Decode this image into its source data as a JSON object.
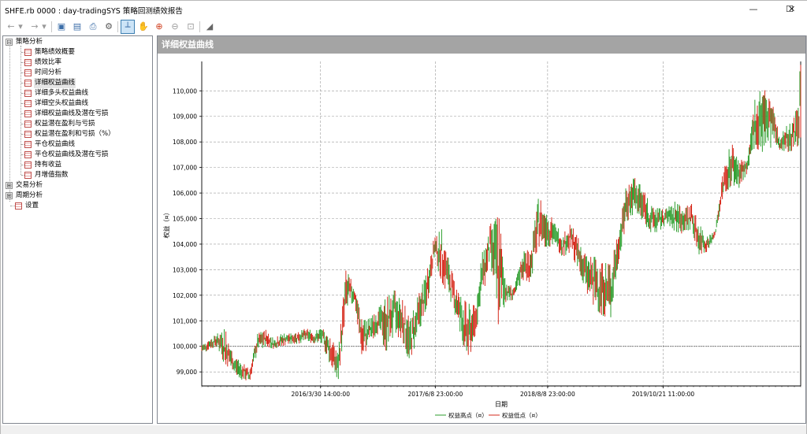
{
  "window": {
    "title": "SHFE.rb 0000 : day-tradingSYS 策略回测绩效报告",
    "minimize_glyph": "—",
    "maximize_glyph": "☐",
    "close_glyph": "✕"
  },
  "toolbar": {
    "buttons": [
      {
        "icon": "back-arrow-icon",
        "glyph": "←"
      },
      {
        "icon": "dropdown-icon",
        "glyph": "▾"
      },
      {
        "icon": "forward-arrow-icon",
        "glyph": "→"
      },
      {
        "icon": "dropdown-icon",
        "glyph": "▾"
      },
      {
        "icon": "save-icon",
        "glyph": "▣"
      },
      {
        "icon": "open-book-icon",
        "glyph": "▤"
      },
      {
        "icon": "print-icon",
        "glyph": "⎙"
      },
      {
        "icon": "gear-icon",
        "glyph": "⚙"
      },
      {
        "icon": "crosshair-icon",
        "glyph": "┴"
      },
      {
        "icon": "hand-pan-icon",
        "glyph": "✋"
      },
      {
        "icon": "zoom-in-icon",
        "glyph": "⊕"
      },
      {
        "icon": "zoom-out-icon",
        "glyph": "⊖"
      },
      {
        "icon": "zoom-reset-icon",
        "glyph": "⊡"
      },
      {
        "icon": "chart-style-icon",
        "glyph": "◢"
      }
    ]
  },
  "tree": {
    "groups": [
      {
        "label": "策略分析",
        "expanded": true,
        "expander": "⊟",
        "items": [
          "策略绩效概要",
          "绩效比率",
          "时间分析",
          "详细权益曲线",
          "详细多头权益曲线",
          "详细空头权益曲线",
          "详细权益曲线及潜在亏损",
          "权益潜在盈利与亏损",
          "权益潜在盈利和亏损（%）",
          "平仓权益曲线",
          "平仓权益曲线及潜在亏损",
          "持有收益",
          "月增值指数"
        ],
        "selected_index": 3
      },
      {
        "label": "交易分析",
        "expanded": false,
        "expander": "⊞",
        "items": []
      },
      {
        "label": "周期分析",
        "expanded": false,
        "expander": "⊞",
        "items": []
      }
    ],
    "leaf_root": "设置"
  },
  "panel": {
    "header": "详细权益曲线"
  },
  "chart_data": {
    "type": "line",
    "xlabel": "日期",
    "ylabel": "权益（¤）",
    "ylim": [
      98450,
      111150
    ],
    "yticks": [
      99000,
      100000,
      101000,
      102000,
      103000,
      104000,
      105000,
      106000,
      107000,
      108000,
      109000,
      110000
    ],
    "ytick_labels": [
      "99,000",
      "100,000",
      "101,000",
      "102,000",
      "103,000",
      "104,000",
      "105,000",
      "106,000",
      "107,000",
      "108,000",
      "109,000",
      "110,000"
    ],
    "xlim": [
      "2015-01-05",
      "2021-03-26"
    ],
    "xticks": [
      "2016-03-30 14:00:00",
      "2017-06-08 23:00:00",
      "2018-08-08 23:00:00",
      "2019-10-21 11:00:00"
    ],
    "xtick_labels": [
      "2016/3/30 14:00:00",
      "2017/6/8 23:00:00",
      "2018/8/8 23:00:00",
      "2019/10/21 11:00:00"
    ],
    "reference_line": 100000,
    "grid": true,
    "legend_position": "bottom-center",
    "series": [
      {
        "name": "权益高点（¤）",
        "color": "#2e9e2e",
        "role": "high"
      },
      {
        "name": "权益低点（¤）",
        "color": "#d62a1c",
        "role": "low"
      }
    ],
    "dates": [
      "2015-01-05",
      "2015-02-05",
      "2015-03-05",
      "2015-04-05",
      "2015-05-05",
      "2015-06-05",
      "2015-07-05",
      "2015-08-05",
      "2015-09-05",
      "2015-10-05",
      "2015-11-05",
      "2015-12-05",
      "2016-01-05",
      "2016-02-05",
      "2016-03-05",
      "2016-04-05",
      "2016-05-05",
      "2016-06-05",
      "2016-07-05",
      "2016-08-05",
      "2016-09-05",
      "2016-10-05",
      "2016-11-05",
      "2016-12-05",
      "2017-01-05",
      "2017-02-05",
      "2017-03-05",
      "2017-04-05",
      "2017-05-05",
      "2017-06-05",
      "2017-07-05",
      "2017-08-05",
      "2017-09-05",
      "2017-10-05",
      "2017-11-05",
      "2017-12-05",
      "2018-01-05",
      "2018-02-05",
      "2018-03-05",
      "2018-04-05",
      "2018-05-05",
      "2018-06-05",
      "2018-07-05",
      "2018-08-05",
      "2018-09-05",
      "2018-10-05",
      "2018-11-05",
      "2018-12-05",
      "2019-01-05",
      "2019-02-05",
      "2019-03-05",
      "2019-04-05",
      "2019-05-05",
      "2019-06-05",
      "2019-07-05",
      "2019-08-05",
      "2019-09-05",
      "2019-10-05",
      "2019-11-05",
      "2019-12-05",
      "2020-01-05",
      "2020-02-05",
      "2020-03-05",
      "2020-04-05",
      "2020-05-05",
      "2020-06-05",
      "2020-07-05",
      "2020-08-05",
      "2020-09-05",
      "2020-10-05",
      "2020-11-05",
      "2020-12-05",
      "2021-01-05",
      "2021-02-05",
      "2021-03-05",
      "2021-03-26"
    ],
    "highs": [
      100100,
      100300,
      100500,
      100700,
      99600,
      99400,
      99100,
      100500,
      100650,
      100300,
      100500,
      100500,
      100600,
      100700,
      100600,
      100700,
      100500,
      99700,
      103000,
      102400,
      101000,
      101100,
      101500,
      101900,
      102200,
      101900,
      101000,
      102000,
      102800,
      104300,
      104600,
      103100,
      102200,
      101700,
      101600,
      103700,
      104800,
      105100,
      102500,
      102300,
      103700,
      103800,
      105800,
      105500,
      104800,
      104400,
      104800,
      104200,
      103500,
      103500,
      103300,
      103200,
      104500,
      106400,
      106600,
      106200,
      105500,
      105400,
      105400,
      105700,
      105400,
      105600,
      104800,
      104300,
      104500,
      106900,
      108000,
      107300,
      107300,
      109800,
      110200,
      109700,
      108200,
      108700,
      109000,
      111100
    ],
    "lows": [
      99700,
      99900,
      100000,
      99200,
      99000,
      98700,
      98600,
      99800,
      100000,
      99900,
      100000,
      100100,
      100100,
      100200,
      100100,
      100100,
      99300,
      98600,
      101200,
      101800,
      99500,
      100200,
      100500,
      99800,
      100500,
      100200,
      99300,
      100500,
      101300,
      103400,
      102500,
      101800,
      100800,
      99300,
      100200,
      102000,
      103200,
      100700,
      101800,
      101800,
      102600,
      102500,
      103900,
      103900,
      103900,
      103500,
      103700,
      102900,
      102100,
      101500,
      101200,
      101100,
      103300,
      104900,
      105100,
      104900,
      104400,
      104500,
      104800,
      104500,
      104400,
      104600,
      103600,
      103700,
      104300,
      105800,
      106300,
      106200,
      106800,
      107800,
      107500,
      107800,
      107700,
      107600,
      107700,
      108000
    ]
  }
}
